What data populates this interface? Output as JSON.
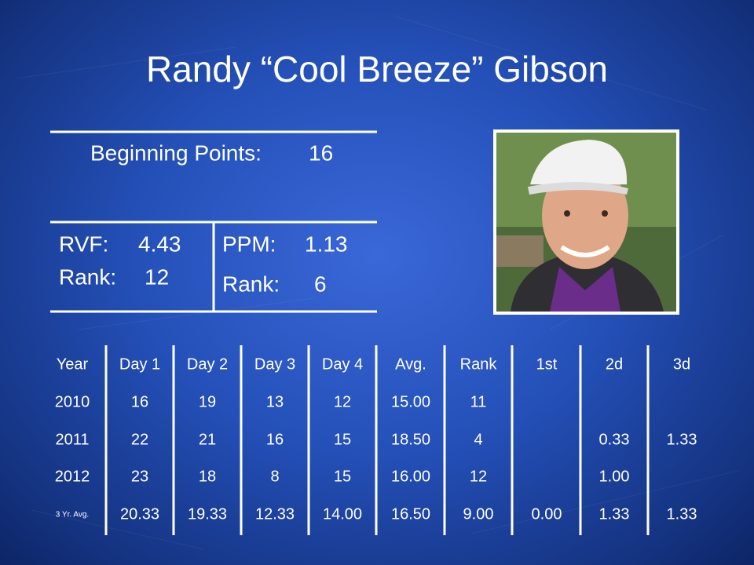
{
  "header": {
    "title": "Randy “Cool Breeze” Gibson"
  },
  "summary": {
    "beginning_points": {
      "label": "Beginning Points:",
      "value": "16"
    },
    "rvf": {
      "label": "RVF:",
      "value": "4.43"
    },
    "rvf_rank": {
      "label": "Rank:",
      "value": "12"
    },
    "ppm": {
      "label": "PPM:",
      "value": "1.13"
    },
    "ppm_rank": {
      "label": "Rank:",
      "value": "6"
    }
  },
  "table": {
    "columns": [
      "Year",
      "Day 1",
      "Day 2",
      "Day 3",
      "Day 4",
      "Avg.",
      "Rank",
      "1st",
      "2d",
      "3d"
    ],
    "rows": [
      [
        "2010",
        "16",
        "19",
        "13",
        "12",
        "15.00",
        "11",
        null,
        null,
        null
      ],
      [
        "2011",
        "22",
        "21",
        "16",
        "15",
        "18.50",
        "4",
        null,
        "0.33",
        "1.33"
      ],
      [
        "2012",
        "23",
        "18",
        "8",
        "15",
        "16.00",
        "12",
        null,
        "1.00",
        null
      ],
      [
        "3 Yr. Avg.",
        "20.33",
        "19.33",
        "12.33",
        "14.00",
        "16.50",
        "9.00",
        "0.00",
        "1.33",
        "1.33"
      ]
    ]
  }
}
